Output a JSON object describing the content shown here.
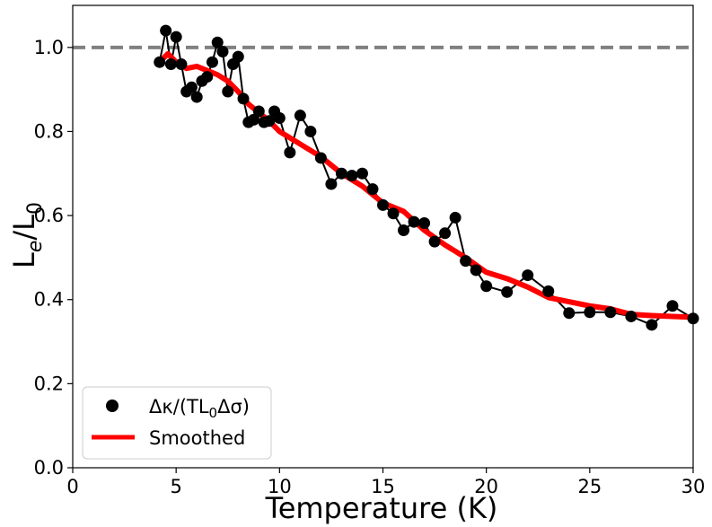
{
  "chart_data": {
    "type": "line",
    "xlabel": "Temperature (K)",
    "ylabel": "Le/L0",
    "ylabel_main": "L",
    "ylabel_sub1": "e",
    "ylabel_slash": "/L",
    "ylabel_sub2": "0",
    "xlim": [
      0,
      30
    ],
    "ylim": [
      0.0,
      1.1
    ],
    "xticks": [
      0,
      5,
      10,
      15,
      20,
      25,
      30
    ],
    "yticks": [
      0.0,
      0.2,
      0.4,
      0.6,
      0.8,
      1.0
    ],
    "xtick_labels": [
      "0",
      "5",
      "10",
      "15",
      "20",
      "25",
      "30"
    ],
    "ytick_labels": [
      "0.0",
      "0.2",
      "0.4",
      "0.6",
      "0.8",
      "1.0"
    ],
    "reference_line": {
      "y": 1.0,
      "style": "dashed",
      "color": "#808080"
    },
    "legend": {
      "position": "lower-left",
      "entries": [
        {
          "label_pre": "Δκ/(TL",
          "label_sub": "0",
          "label_post": "Δσ)",
          "marker": "circle",
          "color": "#000000"
        },
        {
          "label": "Smoothed",
          "marker": "line",
          "color": "#ff0000"
        }
      ]
    },
    "series": [
      {
        "name": "Δκ/(TL0Δσ)",
        "color": "#000000",
        "marker": "circle",
        "x": [
          4.2,
          4.5,
          4.75,
          5.0,
          5.25,
          5.5,
          5.75,
          6.0,
          6.25,
          6.5,
          6.75,
          7.0,
          7.25,
          7.5,
          7.75,
          8.0,
          8.25,
          8.5,
          8.75,
          9.0,
          9.25,
          9.5,
          9.75,
          10.0,
          10.5,
          11.0,
          11.5,
          12.0,
          12.5,
          13.0,
          13.5,
          14.0,
          14.5,
          15.0,
          15.5,
          16.0,
          16.5,
          17.0,
          17.5,
          18.0,
          18.5,
          19.0,
          19.5,
          20.0,
          21.0,
          22.0,
          23.0,
          24.0,
          25.0,
          26.0,
          27.0,
          28.0,
          29.0,
          30.0
        ],
        "y": [
          0.965,
          1.04,
          0.96,
          1.025,
          0.96,
          0.895,
          0.905,
          0.882,
          0.92,
          0.93,
          0.965,
          1.012,
          0.99,
          0.895,
          0.96,
          0.978,
          0.878,
          0.822,
          0.828,
          0.848,
          0.822,
          0.825,
          0.848,
          0.832,
          0.75,
          0.838,
          0.8,
          0.737,
          0.675,
          0.7,
          0.695,
          0.7,
          0.663,
          0.625,
          0.605,
          0.565,
          0.585,
          0.582,
          0.538,
          0.558,
          0.595,
          0.492,
          0.47,
          0.432,
          0.418,
          0.458,
          0.42,
          0.368,
          0.37,
          0.37,
          0.36,
          0.34,
          0.385,
          0.355
        ]
      },
      {
        "name": "Smoothed",
        "color": "#ff0000",
        "marker": "none",
        "x": [
          4.2,
          4.6,
          5.0,
          5.5,
          6.0,
          6.5,
          7.0,
          7.5,
          8.0,
          8.5,
          9.0,
          9.5,
          10.0,
          11.0,
          12.0,
          13.0,
          14.0,
          15.0,
          16.0,
          17.0,
          18.0,
          19.0,
          20.0,
          21.0,
          22.0,
          23.0,
          24.0,
          25.0,
          26.0,
          27.0,
          28.0,
          29.0,
          30.0
        ],
        "y": [
          0.965,
          0.985,
          0.965,
          0.95,
          0.955,
          0.945,
          0.935,
          0.92,
          0.895,
          0.865,
          0.845,
          0.825,
          0.8,
          0.77,
          0.74,
          0.7,
          0.67,
          0.63,
          0.61,
          0.565,
          0.53,
          0.5,
          0.465,
          0.45,
          0.43,
          0.405,
          0.395,
          0.385,
          0.378,
          0.365,
          0.362,
          0.36,
          0.358
        ]
      }
    ]
  }
}
